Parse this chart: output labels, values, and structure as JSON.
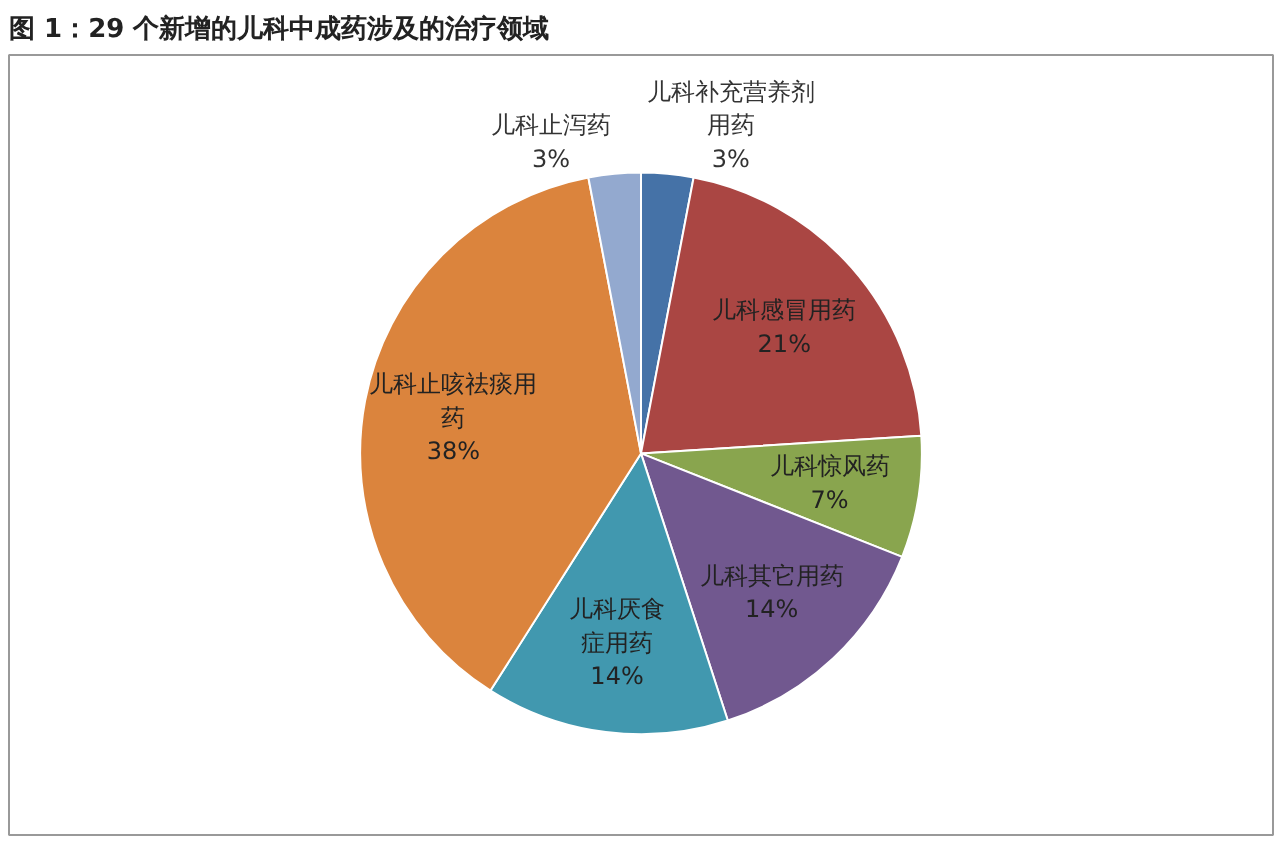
{
  "chart_data": {
    "type": "pie",
    "title": "图 1：29 个新增的儿科中成药涉及的治疗领域",
    "categories": [
      "儿科补充营养剂用药",
      "儿科感冒用药",
      "儿科惊风药",
      "儿科其它用药",
      "儿科厌食症用药",
      "儿科止咳祛痰用药",
      "儿科止泻药"
    ],
    "values": [
      3,
      21,
      7,
      14,
      14,
      38,
      3
    ],
    "value_labels": [
      "3%",
      "21%",
      "7%",
      "14%",
      "14%",
      "38%",
      "3%"
    ],
    "colors": [
      "#4572a7",
      "#aa4643",
      "#89a54e",
      "#71588f",
      "#4198af",
      "#db843d",
      "#93a9cf"
    ],
    "legend": false
  }
}
